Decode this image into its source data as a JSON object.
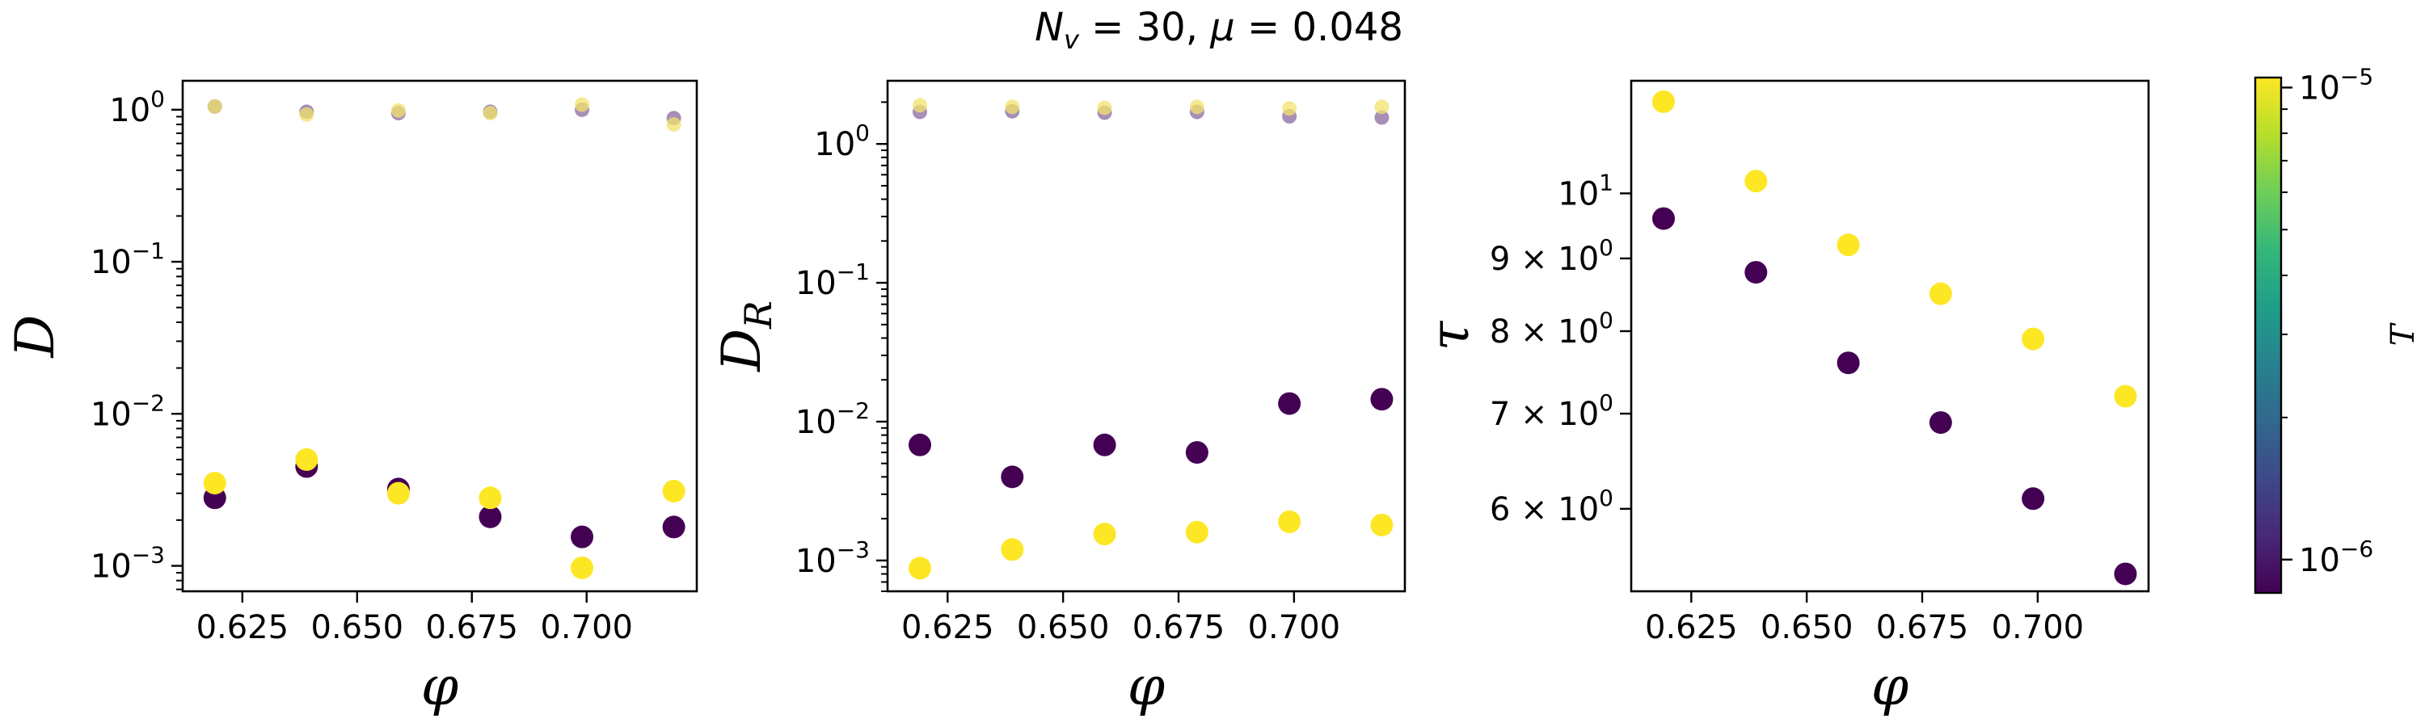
{
  "figure": {
    "suptitle": "N_v = 30, μ = 0.048",
    "suptitle_parts": {
      "n_symbol": "N",
      "n_subscript": "v",
      "n_rest": " = 30, ",
      "mu_symbol": "μ",
      "mu_rest": " = 0.048"
    }
  },
  "colors": {
    "low_T": "#440154",
    "high_T": "#fde725",
    "low_T_faint": "#8a6aa0",
    "high_T_faint": "#f1e36b",
    "axes": "#000000"
  },
  "colorbar": {
    "label": "T",
    "tick_labels": [
      {
        "base": "10",
        "exp": "−5",
        "value": 1e-05
      },
      {
        "base": "10",
        "exp": "−6",
        "value": 1e-06
      }
    ],
    "range": [
      8.5e-07,
      1.05e-05
    ],
    "scale": "log",
    "colormap": "viridis"
  },
  "chart_data": [
    {
      "type": "scatter",
      "xlabel": "φ",
      "ylabel": "D",
      "yscale": "log",
      "xlim": [
        0.612,
        0.724
      ],
      "ylim": [
        0.00068,
        1.55
      ],
      "xticks": [
        {
          "value": 0.625,
          "label": "0.625"
        },
        {
          "value": 0.65,
          "label": "0.650"
        },
        {
          "value": 0.675,
          "label": "0.675"
        },
        {
          "value": 0.7,
          "label": "0.700"
        }
      ],
      "yticks": [
        {
          "value": 1,
          "base": "10",
          "exp": "0"
        },
        {
          "value": 0.1,
          "base": "10",
          "exp": "−1"
        },
        {
          "value": 0.01,
          "base": "10",
          "exp": "−2"
        },
        {
          "value": 0.001,
          "base": "10",
          "exp": "−3"
        }
      ],
      "x": [
        0.619,
        0.639,
        0.659,
        0.679,
        0.699,
        0.719
      ],
      "series": [
        {
          "temperature": "low",
          "faint": true,
          "values": [
            1.05,
            0.97,
            0.95,
            0.97,
            1.0,
            0.88
          ]
        },
        {
          "temperature": "high",
          "faint": true,
          "values": [
            1.05,
            0.93,
            0.99,
            0.95,
            1.08,
            0.8
          ]
        },
        {
          "temperature": "low",
          "faint": false,
          "values": [
            0.0028,
            0.0045,
            0.0032,
            0.0021,
            0.00155,
            0.0018
          ]
        },
        {
          "temperature": "high",
          "faint": false,
          "values": [
            0.0035,
            0.005,
            0.003,
            0.0028,
            0.00097,
            0.0031
          ]
        }
      ]
    },
    {
      "type": "scatter",
      "xlabel": "φ",
      "ylabel": "D_R",
      "ylabel_parts": {
        "main": "D",
        "sub": "R"
      },
      "yscale": "log",
      "xlim": [
        0.612,
        0.724
      ],
      "ylim": [
        0.0006,
        2.85
      ],
      "xticks": [
        {
          "value": 0.625,
          "label": "0.625"
        },
        {
          "value": 0.65,
          "label": "0.650"
        },
        {
          "value": 0.675,
          "label": "0.675"
        },
        {
          "value": 0.7,
          "label": "0.700"
        }
      ],
      "yticks": [
        {
          "value": 1,
          "base": "10",
          "exp": "0"
        },
        {
          "value": 0.1,
          "base": "10",
          "exp": "−1"
        },
        {
          "value": 0.01,
          "base": "10",
          "exp": "−2"
        },
        {
          "value": 0.001,
          "base": "10",
          "exp": "−3"
        }
      ],
      "x": [
        0.619,
        0.639,
        0.659,
        0.679,
        0.699,
        0.719
      ],
      "series": [
        {
          "temperature": "low",
          "faint": true,
          "values": [
            1.7,
            1.72,
            1.68,
            1.7,
            1.58,
            1.55
          ]
        },
        {
          "temperature": "high",
          "faint": true,
          "values": [
            1.9,
            1.85,
            1.82,
            1.85,
            1.8,
            1.85
          ]
        },
        {
          "temperature": "low",
          "faint": false,
          "values": [
            0.0068,
            0.004,
            0.0068,
            0.006,
            0.0135,
            0.0145
          ]
        },
        {
          "temperature": "high",
          "faint": false,
          "values": [
            0.00088,
            0.0012,
            0.00155,
            0.0016,
            0.0019,
            0.0018
          ]
        }
      ]
    },
    {
      "type": "scatter",
      "xlabel": "φ",
      "ylabel": "τ",
      "yscale": "log",
      "xlim": [
        0.612,
        0.724
      ],
      "ylim": [
        5.25,
        12.0
      ],
      "xticks": [
        {
          "value": 0.625,
          "label": "0.625"
        },
        {
          "value": 0.65,
          "label": "0.650"
        },
        {
          "value": 0.675,
          "label": "0.675"
        },
        {
          "value": 0.7,
          "label": "0.700"
        }
      ],
      "yticks": [
        {
          "value": 10,
          "base": "10",
          "exp": "1",
          "mult": ""
        },
        {
          "value": 9,
          "base": "10",
          "exp": "0",
          "mult": "9 × "
        },
        {
          "value": 8,
          "base": "10",
          "exp": "0",
          "mult": "8 × "
        },
        {
          "value": 7,
          "base": "10",
          "exp": "0",
          "mult": "7 × "
        },
        {
          "value": 6,
          "base": "10",
          "exp": "0",
          "mult": "6 × "
        }
      ],
      "x": [
        0.619,
        0.639,
        0.659,
        0.679,
        0.699,
        0.719
      ],
      "series": [
        {
          "temperature": "low",
          "faint": false,
          "values": [
            9.6,
            8.8,
            7.6,
            6.9,
            6.1,
            5.4
          ]
        },
        {
          "temperature": "high",
          "faint": false,
          "values": [
            11.6,
            10.2,
            9.2,
            8.5,
            7.9,
            7.2
          ]
        }
      ]
    }
  ]
}
